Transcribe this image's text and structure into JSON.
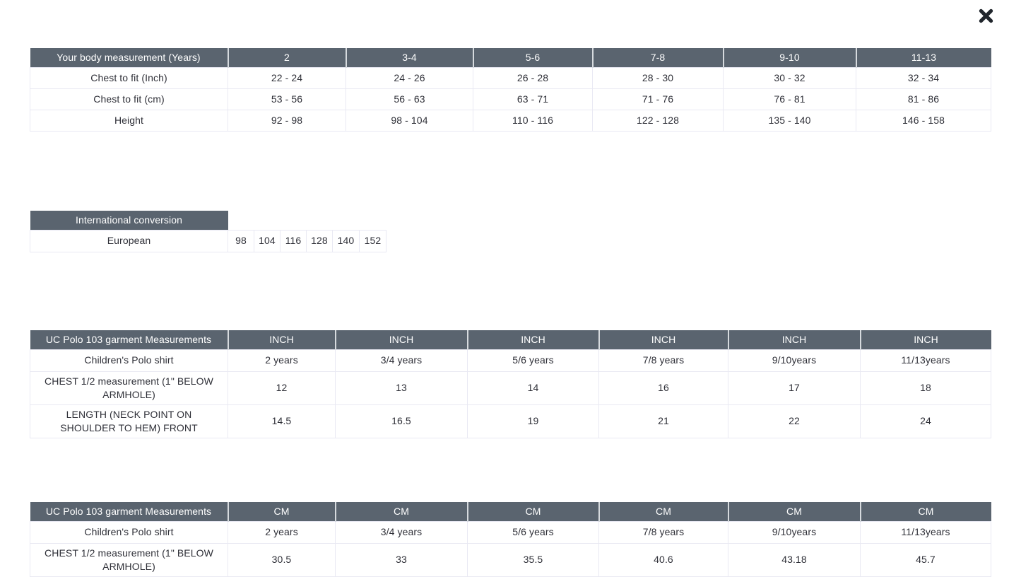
{
  "modal": {
    "close_icon": "close-x"
  },
  "colors": {
    "header_bg": "#5a646f",
    "header_text": "#ffffff",
    "body_text": "#2f3038",
    "row_border": "#e9e9f3",
    "header_divider": "#d6dade",
    "close_icon": "#20252c"
  },
  "tables": [
    {
      "name": "body-measurement",
      "header": [
        "Your body measurement (Years)",
        "2",
        "3-4",
        "5-6",
        "7-8",
        "9-10",
        "11-13"
      ],
      "rows": [
        [
          "Chest to fit (Inch)",
          "22 - 24",
          "24 - 26",
          "26 - 28",
          "28 - 30",
          "30 - 32",
          "32 - 34"
        ],
        [
          "Chest to fit (cm)",
          "53 - 56",
          "56 - 63",
          "63 - 71",
          "71 - 76",
          "76 - 81",
          "81 - 86"
        ],
        [
          "Height",
          "92 - 98",
          "98 - 104",
          "110 - 116",
          "122 - 128",
          "135 - 140",
          "146 - 158"
        ]
      ]
    },
    {
      "name": "international-conversion",
      "header": [
        "International conversion"
      ],
      "rows": [
        [
          "European",
          "98",
          "104",
          "116",
          "128",
          "140",
          "152"
        ]
      ]
    },
    {
      "name": "garment-measurements-inch",
      "header": [
        "UC Polo 103 garment Measurements",
        "INCH",
        "INCH",
        "INCH",
        "INCH",
        "INCH",
        "INCH"
      ],
      "rows": [
        [
          "Children's Polo shirt",
          "2 years",
          "3/4 years",
          "5/6 years",
          "7/8 years",
          "9/10years",
          "11/13years"
        ],
        [
          "CHEST 1/2 measurement (1\" BELOW ARMHOLE)",
          "12",
          "13",
          "14",
          "16",
          "17",
          "18"
        ],
        [
          "LENGTH (NECK POINT ON SHOULDER TO HEM) FRONT",
          "14.5",
          "16.5",
          "19",
          "21",
          "22",
          "24"
        ]
      ]
    },
    {
      "name": "garment-measurements-cm",
      "header": [
        "UC Polo 103 garment Measurements",
        "CM",
        "CM",
        "CM",
        "CM",
        "CM",
        "CM"
      ],
      "rows": [
        [
          "Children's Polo shirt",
          "2 years",
          "3/4 years",
          "5/6 years",
          "7/8 years",
          "9/10years",
          "11/13years"
        ],
        [
          "CHEST 1/2 measurement (1\" BELOW ARMHOLE)",
          "30.5",
          "33",
          "35.5",
          "40.6",
          "43.18",
          "45.7"
        ]
      ]
    }
  ]
}
